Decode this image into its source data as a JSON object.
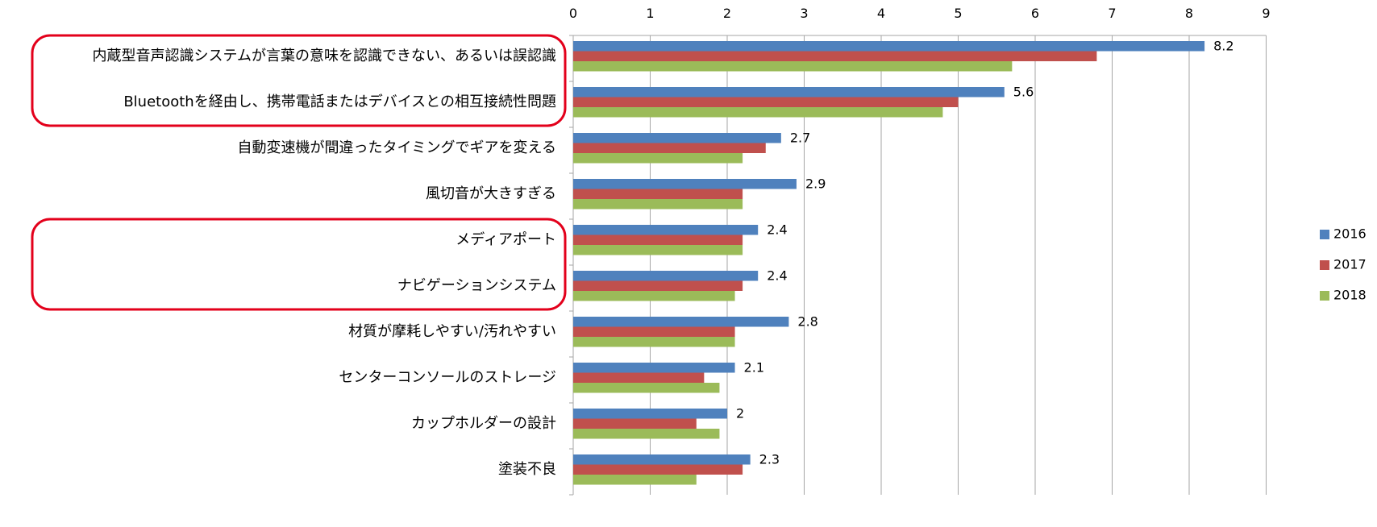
{
  "chart_data": {
    "type": "bar",
    "orientation": "horizontal",
    "categories": [
      "内蔵型音声認識システムが言葉の意味を認識できない、あるいは誤認識",
      "Bluetoothを経由し、携帯電話またはデバイスとの相互接続性問題",
      "自動変速機が間違ったタイミングでギアを変える",
      "風切音が大きすぎる",
      "メディアポート",
      "ナビゲーションシステム",
      "材質が摩耗しやすい/汚れやすい",
      "センターコンソールのストレージ",
      "カップホルダーの設計",
      "塗装不良"
    ],
    "series": [
      {
        "name": "2016",
        "color": "#4F81BD",
        "values": [
          8.2,
          5.6,
          2.7,
          2.9,
          2.4,
          2.4,
          2.8,
          2.1,
          2.0,
          2.3
        ],
        "labels": [
          "8.2",
          "5.6",
          "2.7",
          "2.9",
          "2.4",
          "2.4",
          "2.8",
          "2.1",
          "2",
          "2.3"
        ]
      },
      {
        "name": "2017",
        "color": "#C0504D",
        "values": [
          6.8,
          5.0,
          2.5,
          2.2,
          2.2,
          2.2,
          2.1,
          1.7,
          1.6,
          2.2
        ]
      },
      {
        "name": "2018",
        "color": "#9BBB59",
        "values": [
          5.7,
          4.8,
          2.2,
          2.2,
          2.2,
          2.1,
          2.1,
          1.9,
          1.9,
          1.6
        ]
      }
    ],
    "xlim": [
      0,
      9
    ],
    "ticks": [
      "0",
      "1",
      "2",
      "3",
      "4",
      "5",
      "6",
      "7",
      "8",
      "9"
    ],
    "x_axis_position": "top",
    "grid": "vertical",
    "legend": "right",
    "highlight_groups": [
      [
        0,
        1
      ],
      [
        4,
        5
      ]
    ],
    "highlight_color": "#E3001B",
    "gridline_color": "#A6A6A6"
  }
}
